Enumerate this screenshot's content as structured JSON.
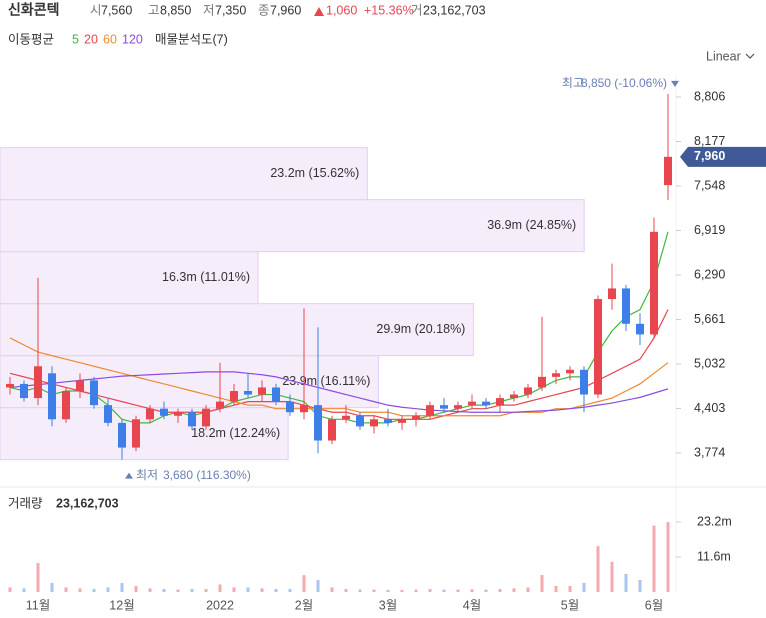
{
  "header": {
    "name": "신화콘텍",
    "items": [
      {
        "prefix": "시",
        "text": "7,560"
      },
      {
        "prefix": "고",
        "text": "8,850"
      },
      {
        "prefix": "저",
        "text": "7,350"
      },
      {
        "prefix": "종",
        "text": "7,960"
      }
    ],
    "change": "1,060",
    "change_pct": "+15.36%",
    "volume_prefix": "거",
    "volume": "23,162,703"
  },
  "scale_label": "Linear",
  "chart_data": [
    {
      "type": "candlestick",
      "ma_title": "이동평균",
      "open": [
        4700,
        4750,
        4550,
        4900,
        4250,
        4650,
        4800,
        4450,
        4200,
        3850,
        4250,
        4400,
        4300,
        4350,
        4150,
        4400,
        4500,
        4650,
        4600,
        4700,
        4500,
        4350,
        4450,
        3950,
        4250,
        4300,
        4150,
        4250,
        4200,
        4250,
        4300,
        4450,
        4400,
        4450,
        4500,
        4450,
        4550,
        4600,
        4700,
        4850,
        4900,
        4950,
        4600,
        5950,
        6100,
        5600,
        5450,
        7560
      ],
      "high": [
        4850,
        4800,
        6250,
        5000,
        4700,
        4900,
        4850,
        4550,
        4250,
        4300,
        4450,
        4500,
        4400,
        4400,
        4450,
        5050,
        4750,
        4900,
        4800,
        4750,
        4600,
        5820,
        5550,
        4300,
        4450,
        4350,
        4300,
        4400,
        4300,
        4350,
        4500,
        4550,
        4500,
        4600,
        4550,
        4600,
        4650,
        4750,
        5700,
        4950,
        5000,
        5000,
        6000,
        6450,
        6150,
        5750,
        7100,
        8850
      ],
      "low": [
        4600,
        4500,
        4450,
        4150,
        4200,
        4550,
        4400,
        4150,
        3680,
        3800,
        4200,
        4250,
        4200,
        4100,
        4100,
        4350,
        4450,
        4550,
        4500,
        4450,
        4300,
        4250,
        3770,
        3900,
        4200,
        4100,
        4050,
        4150,
        4100,
        4150,
        4250,
        4350,
        4350,
        4400,
        4400,
        4350,
        4500,
        4550,
        4650,
        4750,
        4800,
        4350,
        4550,
        5800,
        5500,
        5300,
        5400,
        7350
      ],
      "close": [
        4750,
        4550,
        5000,
        4250,
        4650,
        4800,
        4450,
        4200,
        3850,
        4250,
        4400,
        4300,
        4350,
        4150,
        4400,
        4500,
        4650,
        4600,
        4700,
        4500,
        4350,
        4450,
        3950,
        4250,
        4300,
        4150,
        4250,
        4200,
        4250,
        4300,
        4450,
        4400,
        4450,
        4500,
        4450,
        4550,
        4600,
        4700,
        4850,
        4900,
        4950,
        4600,
        5950,
        6100,
        5600,
        5450,
        6900,
        7960
      ],
      "up_color": "#e8454f",
      "down_color": "#3d7ee8",
      "series": [
        {
          "name": "5",
          "color": "#3fb83f",
          "values": [
            4700,
            4650,
            4700,
            4600,
            4650,
            4650,
            4600,
            4450,
            4250,
            4200,
            4200,
            4300,
            4350,
            4300,
            4350,
            4400,
            4500,
            4550,
            4600,
            4600,
            4550,
            4500,
            4300,
            4250,
            4250,
            4200,
            4200,
            4200,
            4250,
            4250,
            4300,
            4350,
            4400,
            4450,
            4450,
            4500,
            4550,
            4600,
            4700,
            4800,
            4850,
            4850,
            5200,
            5500,
            5700,
            5800,
            6200,
            6900
          ]
        },
        {
          "name": "20",
          "color": "#e8454f",
          "values": [
            4900,
            4850,
            4800,
            4750,
            4700,
            4650,
            4600,
            4550,
            4500,
            4450,
            4400,
            4350,
            4350,
            4350,
            4350,
            4400,
            4450,
            4500,
            4500,
            4500,
            4500,
            4450,
            4400,
            4350,
            4350,
            4300,
            4300,
            4250,
            4250,
            4250,
            4250,
            4300,
            4350,
            4400,
            4400,
            4450,
            4450,
            4500,
            4550,
            4600,
            4650,
            4700,
            4800,
            4900,
            5000,
            5100,
            5400,
            5800
          ]
        },
        {
          "name": "60",
          "color": "#f0892f",
          "values": [
            5400,
            5300,
            5200,
            5150,
            5100,
            5050,
            5000,
            4950,
            4900,
            4850,
            4800,
            4750,
            4700,
            4650,
            4600,
            4550,
            4500,
            4450,
            4450,
            4400,
            4400,
            4400,
            4400,
            4400,
            4400,
            4350,
            4350,
            4350,
            4300,
            4300,
            4300,
            4300,
            4300,
            4300,
            4300,
            4300,
            4350,
            4350,
            4350,
            4400,
            4400,
            4450,
            4500,
            4550,
            4650,
            4750,
            4900,
            5050
          ]
        },
        {
          "name": "120",
          "color": "#8a4de0",
          "values": [
            4700,
            4720,
            4740,
            4760,
            4780,
            4800,
            4820,
            4840,
            4860,
            4870,
            4880,
            4890,
            4900,
            4910,
            4920,
            4920,
            4920,
            4900,
            4880,
            4850,
            4800,
            4750,
            4700,
            4650,
            4600,
            4550,
            4500,
            4450,
            4420,
            4400,
            4380,
            4370,
            4360,
            4350,
            4350,
            4350,
            4350,
            4360,
            4370,
            4380,
            4400,
            4420,
            4450,
            4480,
            4520,
            4560,
            4620,
            4680
          ]
        }
      ],
      "ylim": [
        3392,
        9117
      ],
      "yticks": [
        {
          "value": 3774,
          "label": "3,774"
        },
        {
          "value": 4403,
          "label": "4,403"
        },
        {
          "value": 5032,
          "label": "5,032"
        },
        {
          "value": 5661,
          "label": "5,661"
        },
        {
          "value": 6290,
          "label": "6,290"
        },
        {
          "value": 6919,
          "label": "6,919"
        },
        {
          "value": 7548,
          "label": "7,548"
        },
        {
          "value": 8177,
          "label": "8,177"
        },
        {
          "value": 8806,
          "label": "8,806"
        }
      ],
      "last_price": {
        "value": 7960,
        "label": "7,960"
      },
      "high_note": {
        "prefix": "최고",
        "value": 8850,
        "text": "8,850 (-10.06%)"
      },
      "low_note": {
        "prefix": "최저",
        "value": 3680,
        "text": "3,680 (116.30%)"
      },
      "profile": {
        "title": "매물분석도(7)",
        "xlim": [
          0,
          42.7
        ],
        "bands": [
          {
            "low": 3680,
            "high": 4415,
            "value": 18.2,
            "percent": 12.24,
            "label": "18.2m (12.24%)"
          },
          {
            "low": 4415,
            "high": 5150,
            "value": 23.9,
            "percent": 16.11,
            "label": "23.9m (16.11%)"
          },
          {
            "low": 5150,
            "high": 5885,
            "value": 29.9,
            "percent": 20.18,
            "label": "29.9m (20.18%)"
          },
          {
            "low": 5885,
            "high": 6620,
            "value": 16.3,
            "percent": 11.01,
            "label": "16.3m (11.01%)"
          },
          {
            "low": 6620,
            "high": 7355,
            "value": 36.9,
            "percent": 24.85,
            "label": "36.9m (24.85%)"
          },
          {
            "low": 7355,
            "high": 8090,
            "value": 23.2,
            "percent": 15.62,
            "label": "23.2m (15.62%)"
          }
        ]
      }
    },
    {
      "type": "bar",
      "title": "거래량",
      "subtitle": "23,162,703",
      "categories": [
        null,
        null,
        "11월",
        null,
        null,
        null,
        null,
        null,
        "12월",
        null,
        null,
        null,
        null,
        null,
        null,
        "2022",
        null,
        null,
        null,
        null,
        null,
        "2월",
        null,
        null,
        null,
        null,
        null,
        "3월",
        null,
        null,
        null,
        null,
        null,
        "4월",
        null,
        null,
        null,
        null,
        null,
        null,
        "5월",
        null,
        null,
        null,
        null,
        null,
        "6월",
        null
      ],
      "values": [
        1.5,
        1.2,
        9.6,
        3,
        1.5,
        1.2,
        1,
        1.5,
        3,
        2,
        1.2,
        1,
        0.8,
        1,
        1,
        2.5,
        1.5,
        1.5,
        1.2,
        1,
        1,
        5.6,
        4,
        1.5,
        1,
        0.8,
        0.8,
        0.7,
        0.7,
        0.8,
        1,
        0.8,
        0.8,
        0.9,
        0.8,
        1,
        1.2,
        1.5,
        5.6,
        2,
        2,
        3,
        15.2,
        10,
        6,
        4,
        22,
        23.162703
      ],
      "up_color": "#f4a9ac",
      "down_color": "#a8c6f2",
      "ylim": [
        0,
        33.8
      ],
      "yticks": [
        {
          "value": 11.6,
          "label": "11.6m"
        },
        {
          "value": 23.2,
          "label": "23.2m"
        }
      ]
    }
  ]
}
